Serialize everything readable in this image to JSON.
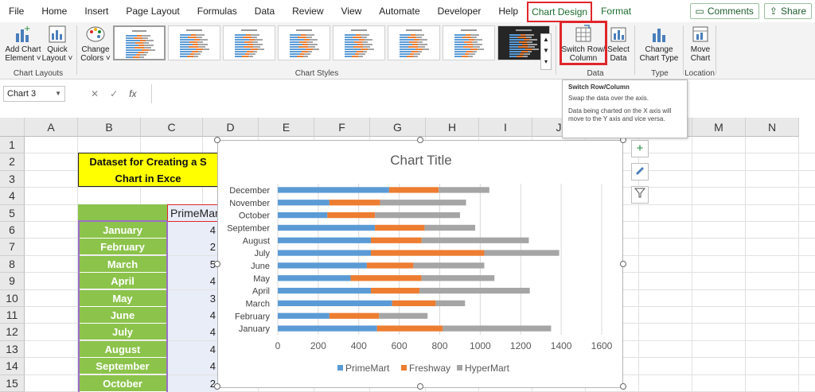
{
  "menu": {
    "tabs": [
      "File",
      "Home",
      "Insert",
      "Page Layout",
      "Formulas",
      "Data",
      "Review",
      "View",
      "Automate",
      "Developer",
      "Help",
      "Chart Design",
      "Format"
    ],
    "comments": "Comments",
    "share": "Share"
  },
  "ribbon": {
    "add_chart_element": [
      "Add Chart",
      "Element ˅"
    ],
    "quick_layout": [
      "Quick",
      "Layout ˅"
    ],
    "change_colors": [
      "Change",
      "Colors ˅"
    ],
    "switch_row_column": [
      "Switch Row/",
      "Column"
    ],
    "select_data": [
      "Select",
      "Data"
    ],
    "change_chart_type": [
      "Change",
      "Chart Type"
    ],
    "move_chart": [
      "Move",
      "Chart"
    ],
    "group_chart_layouts": "Chart Layouts",
    "group_chart_styles": "Chart Styles",
    "group_data": "Data",
    "group_type": "Type",
    "group_location": "Location"
  },
  "formula_bar": {
    "name_box": "Chart 3",
    "cancel": "✕",
    "enter": "✓",
    "fx": "fx"
  },
  "tooltip": {
    "title": "Switch Row/Column",
    "line1": "Swap the data over the axis.",
    "line2": "Data being charted on the X axis will move to the Y axis and vice versa."
  },
  "sheet": {
    "columns": [
      "A",
      "B",
      "C",
      "D",
      "E",
      "F",
      "G",
      "H",
      "I",
      "J",
      "K",
      "L",
      "M",
      "N"
    ],
    "rows": [
      "1",
      "2",
      "3",
      "4",
      "5",
      "6",
      "7",
      "8",
      "9",
      "10",
      "11",
      "12",
      "13",
      "14",
      "15"
    ],
    "title_line1": "Dataset for Creating a S",
    "title_line2": "Chart in Exce",
    "c5": "PrimeMar",
    "months": [
      "January",
      "February",
      "March",
      "April",
      "May",
      "June",
      "July",
      "August",
      "September",
      "October"
    ],
    "c_values": [
      "4",
      "2",
      "5",
      "4",
      "3",
      "4",
      "4",
      "4",
      "4",
      "2"
    ]
  },
  "chart_data": {
    "type": "bar",
    "stacked": true,
    "title": "Chart Title",
    "categories": [
      "January",
      "February",
      "March",
      "April",
      "May",
      "June",
      "July",
      "August",
      "September",
      "October",
      "November",
      "December"
    ],
    "series": [
      {
        "name": "PrimeMart",
        "color": "#5b9bd5",
        "values": [
          490,
          255,
          565,
          460,
          360,
          440,
          460,
          460,
          480,
          245,
          255,
          550
        ]
      },
      {
        "name": "Freshway",
        "color": "#ed7d31",
        "values": [
          325,
          245,
          215,
          240,
          350,
          230,
          560,
          250,
          245,
          235,
          250,
          245
        ]
      },
      {
        "name": "HyperMart",
        "color": "#a5a5a5",
        "values": [
          535,
          240,
          145,
          545,
          360,
          350,
          370,
          530,
          250,
          420,
          425,
          250
        ]
      }
    ],
    "xlim": [
      0,
      1600
    ],
    "xticks": [
      0,
      200,
      400,
      600,
      800,
      1000,
      1200,
      1400,
      1600
    ],
    "grid": true,
    "legend": "bottom"
  },
  "colors": {
    "accent_green": "#1e6c2f",
    "highlight_red": "#e0262a",
    "yellow": "#ffff00",
    "month_green": "#8cc34b"
  }
}
